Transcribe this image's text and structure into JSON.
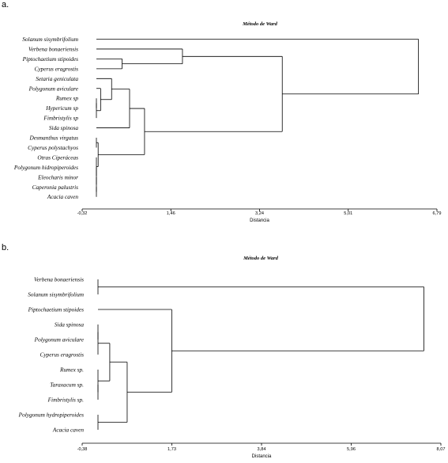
{
  "chart_data": [
    {
      "type": "dendrogram",
      "panel_label": "a.",
      "title": "Método de Ward",
      "xlabel": "Distancia",
      "xlim": [
        -0.32,
        6.79
      ],
      "xticks": [
        "-0,32",
        "1,46",
        "3,24",
        "5,01",
        "6,79"
      ],
      "leaves": [
        "Solanum sisymbrifolium",
        "Verbena bonaeriensis",
        "Piptochaetium stipoides",
        "Cyperus eragrostis",
        "Setaria geniculata",
        "Polygonum aviculare",
        "Rumex sp",
        "Hypericum sp",
        "Fimbristylis sp",
        "Sida spinosa",
        "Desmanthus virgatus",
        "Cyperus polystachyos",
        "Otras Ciperáceas",
        "Polygonum hidropiperoides",
        "Eleocharis minor",
        "Caperonia palustris",
        "Acacia caven"
      ],
      "merges": [
        [
          15,
          16,
          -0.3
        ],
        [
          14,
          -1,
          -0.28
        ],
        [
          13,
          -2,
          -0.27
        ],
        [
          12,
          -3,
          -0.24
        ],
        [
          10,
          11,
          -0.2
        ],
        [
          -5,
          -4,
          0.0
        ],
        [
          6,
          7,
          -0.22
        ],
        [
          -7,
          8,
          -0.08
        ],
        [
          5,
          -8,
          0.05
        ],
        [
          4,
          -9,
          0.27
        ],
        [
          -10,
          9,
          0.63
        ],
        [
          2,
          3,
          0.48
        ],
        [
          1,
          -12,
          1.69
        ],
        [
          -11,
          -6,
          0.93
        ],
        [
          -13,
          -14,
          3.69
        ],
        [
          0,
          -15,
          6.42
        ]
      ]
    },
    {
      "type": "dendrogram",
      "panel_label": "b.",
      "title": "Método de Ward",
      "xlabel": "Distancia",
      "xlim": [
        -0.38,
        8.07
      ],
      "xticks": [
        "-0,38",
        "1,73",
        "3,84",
        "5,96",
        "8,07"
      ],
      "leaves": [
        "Verbena bonaeriensis",
        "Solanum sisymbrifolium",
        "Piptochaetium stipoides",
        "Sida spinosa",
        "Polygonum aviculare",
        "Cyperus eragrostis",
        "Rumex sp.",
        "Taraxacum sp.",
        "Fimbristylis sp.",
        "Polygonum hydropiperoides",
        "Acacia caven"
      ],
      "merges": [
        [
          9,
          10,
          -0.32
        ],
        [
          7,
          8,
          -0.2
        ],
        [
          3,
          4,
          -0.22
        ],
        [
          -3,
          5,
          -0.15
        ],
        [
          -2,
          6,
          -0.1
        ],
        [
          -5,
          -4,
          0.27
        ],
        [
          -6,
          -1,
          0.68
        ],
        [
          2,
          -7,
          1.73
        ],
        [
          0,
          1,
          -0.3
        ],
        [
          -9,
          -8,
          7.67
        ]
      ]
    }
  ]
}
